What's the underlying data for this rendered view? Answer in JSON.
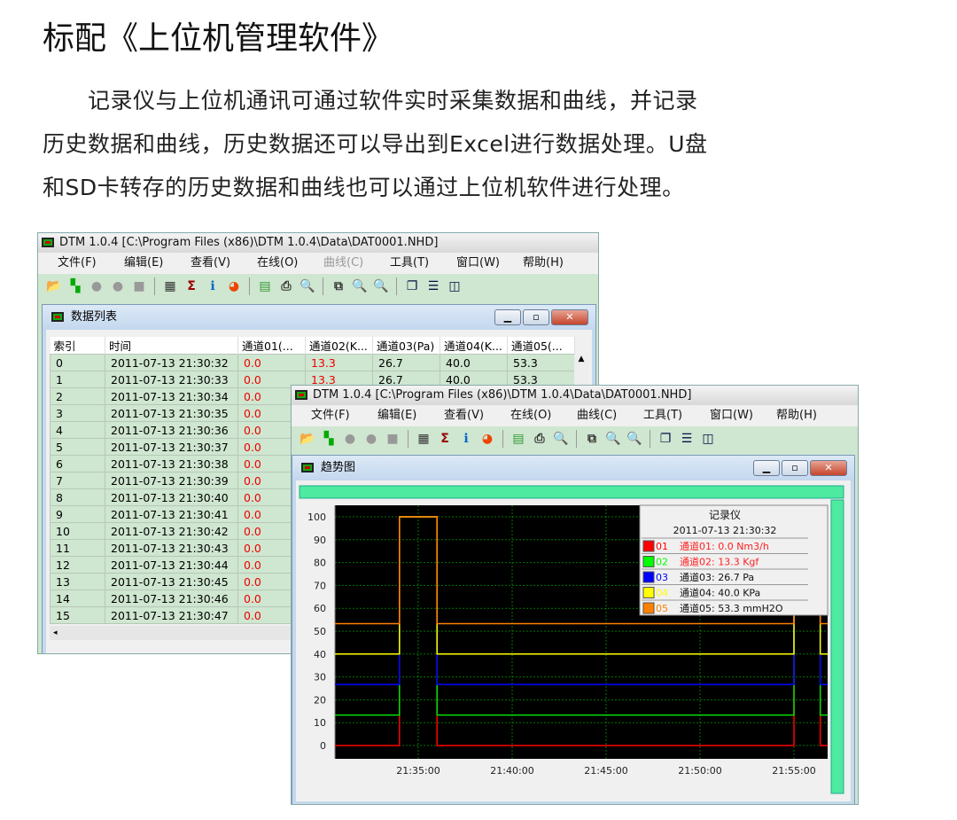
{
  "heading": "标配《上位机管理软件》",
  "paragraph": [
    "　　记录仪与上位机通讯可通过软件实时采集数据和曲线，并记录",
    "历史数据和曲线，历史数据还可以导出到Excel进行数据处理。U盘",
    "和SD卡转存的历史数据和曲线也可以通过上位机软件进行处理。"
  ],
  "app": {
    "title": "DTM 1.0.4 [C:\\Program Files (x86)\\DTM 1.0.4\\Data\\DAT0001.NHD]",
    "menu": [
      "文件(F)",
      "编辑(E)",
      "查看(V)",
      "在线(O)",
      "曲线(C)",
      "工具(T)",
      "窗口(W)",
      "帮助(H)"
    ],
    "toolbar": [
      "open-icon",
      "realtime-icon",
      "connect-icon",
      "disconnect-icon",
      "stop-icon",
      "table-icon",
      "sum-icon",
      "info-icon",
      "pie-icon",
      "export-excel-icon",
      "print-icon",
      "print-preview-icon",
      "copy-icon",
      "zoom-icon",
      "zoom-disabled-icon",
      "cascade-icon",
      "tile-horizontal-icon",
      "tile-vertical-icon"
    ]
  },
  "list_window": {
    "title": "数据列表",
    "columns": [
      "索引",
      "时间",
      "通道01(...",
      "通道02(K...",
      "通道03(Pa)",
      "通道04(K...",
      "通道05(..."
    ],
    "rows": [
      [
        "0",
        "2011-07-13 21:30:32",
        "0.0",
        "13.3",
        "26.7",
        "40.0",
        "53.3"
      ],
      [
        "1",
        "2011-07-13 21:30:33",
        "0.0",
        "13.3",
        "26.7",
        "40.0",
        "53.3"
      ],
      [
        "2",
        "2011-07-13 21:30:34",
        "0.0"
      ],
      [
        "3",
        "2011-07-13 21:30:35",
        "0.0"
      ],
      [
        "4",
        "2011-07-13 21:30:36",
        "0.0"
      ],
      [
        "5",
        "2011-07-13 21:30:37",
        "0.0"
      ],
      [
        "6",
        "2011-07-13 21:30:38",
        "0.0"
      ],
      [
        "7",
        "2011-07-13 21:30:39",
        "0.0"
      ],
      [
        "8",
        "2011-07-13 21:30:40",
        "0.0"
      ],
      [
        "9",
        "2011-07-13 21:30:41",
        "0.0"
      ],
      [
        "10",
        "2011-07-13 21:30:42",
        "0.0"
      ],
      [
        "11",
        "2011-07-13 21:30:43",
        "0.0"
      ],
      [
        "12",
        "2011-07-13 21:30:44",
        "0.0"
      ],
      [
        "13",
        "2011-07-13 21:30:45",
        "0.0"
      ],
      [
        "14",
        "2011-07-13 21:30:46",
        "0.0"
      ],
      [
        "15",
        "2011-07-13 21:30:47",
        "0.0"
      ]
    ]
  },
  "trend_window": {
    "title": "趋势图"
  },
  "chart_data": {
    "type": "line",
    "step": true,
    "ylim": [
      0,
      100
    ],
    "yticks": [
      0,
      10,
      20,
      30,
      40,
      50,
      60,
      70,
      80,
      90,
      100
    ],
    "xlim": [
      "21:30:34",
      "21:56:48"
    ],
    "xticks": [
      "21:35:00",
      "21:40:00",
      "21:45:00",
      "21:50:00",
      "21:55:00"
    ],
    "grid": true,
    "background": "#000000",
    "x": [
      "21:30:34",
      "21:34:00",
      "21:36:00",
      "21:55:00",
      "21:56:24",
      "21:56:48"
    ],
    "series": [
      {
        "id": "01",
        "color": "#ff0000",
        "values": [
          0,
          100,
          0,
          100,
          0,
          0
        ]
      },
      {
        "id": "02",
        "color": "#00e000",
        "values": [
          13.3,
          100,
          13.3,
          100,
          13.3,
          13.3
        ]
      },
      {
        "id": "03",
        "color": "#0000ff",
        "values": [
          26.7,
          100,
          26.7,
          100,
          26.7,
          26.7
        ]
      },
      {
        "id": "04",
        "color": "#ffff00",
        "values": [
          40,
          100,
          40,
          100,
          40,
          40
        ]
      },
      {
        "id": "05",
        "color": "#ff8000",
        "values": [
          53.3,
          100,
          53.3,
          100,
          53.3,
          53.3
        ]
      }
    ],
    "legend": {
      "title": "记录仪",
      "time": "2011-07-13 21:30:32",
      "placement": "top-right",
      "entries": [
        {
          "id": "01",
          "text": "通道01: 0.0 Nm3/h",
          "color": "#ff0000",
          "text_color": "#ff2020"
        },
        {
          "id": "02",
          "text": "通道02: 13.3 Kgf",
          "color": "#00ff00",
          "text_color": "#ff2020"
        },
        {
          "id": "03",
          "text": "通道03: 26.7 Pa",
          "color": "#0000ff",
          "text_color": "#111111"
        },
        {
          "id": "04",
          "text": "通道04: 40.0 KPa",
          "color": "#ffff00",
          "text_color": "#111111"
        },
        {
          "id": "05",
          "text": "通道05: 53.3 mmH2O",
          "color": "#ff8000",
          "text_color": "#111111"
        }
      ]
    }
  }
}
